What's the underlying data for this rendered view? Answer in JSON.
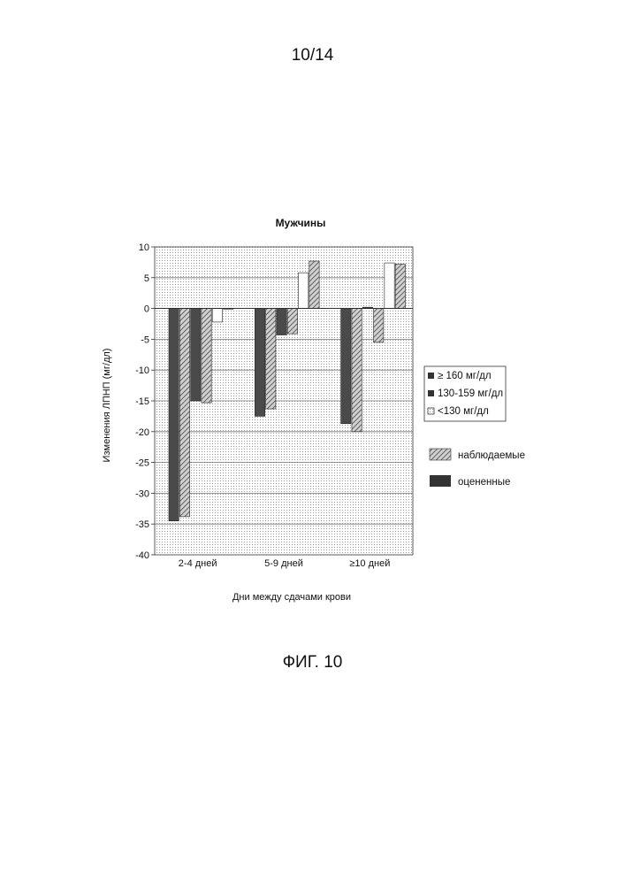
{
  "page": {
    "number": "10/14",
    "figure_label": "ФИГ. 10"
  },
  "chart_data": {
    "type": "bar",
    "title": "Мужчины",
    "xlabel": "Дни между сдачами крови",
    "ylabel": "Изменения ЛПНП (мг/дл)",
    "ylim": [
      -40,
      10
    ],
    "yticks": [
      10,
      5,
      0,
      -5,
      -10,
      -15,
      -20,
      -25,
      -30,
      -35,
      -40
    ],
    "categories": [
      "2-4  дней",
      "5-9 дней",
      "≥10   дней"
    ],
    "grid": true,
    "legend_groups": {
      "position": "right",
      "levels": [
        "≥ 160  мг/дл",
        "130-159 мг/дл",
        "<130  мг/дл"
      ],
      "types": [
        "наблюдаемые",
        "оцененные"
      ]
    },
    "series": [
      {
        "level": "≥ 160  мг/дл",
        "type": "оцененные",
        "values": [
          -34.5,
          -17.5,
          -18.7
        ]
      },
      {
        "level": "≥ 160  мг/дл",
        "type": "наблюдаемые",
        "values": [
          -33.8,
          -16.3,
          -20.0
        ]
      },
      {
        "level": "130-159 мг/дл",
        "type": "оцененные",
        "values": [
          -15.0,
          -4.3,
          0.2
        ]
      },
      {
        "level": "130-159 мг/дл",
        "type": "наблюдаемые",
        "values": [
          -15.3,
          -4.1,
          -5.5
        ]
      },
      {
        "level": "<130  мг/дл",
        "type": "оцененные",
        "values": [
          -2.2,
          5.8,
          7.4
        ]
      },
      {
        "level": "<130  мг/дл",
        "type": "наблюдаемые",
        "values": [
          0.0,
          7.7,
          7.2
        ]
      }
    ],
    "colors": {
      "estimated": "#4a4a4a",
      "observed_hatch": "#555555",
      "grid": "#777777"
    }
  }
}
